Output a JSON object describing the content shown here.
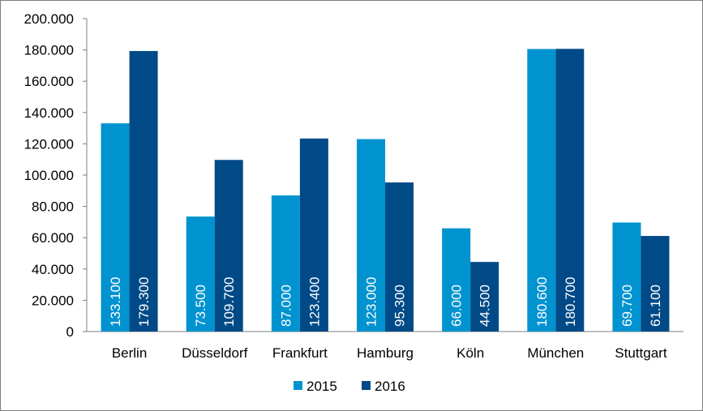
{
  "colors": {
    "series_2015": "#0093d0",
    "series_2016": "#004a87",
    "axis": "#7f7f7f",
    "background": "#ffffff",
    "label_text": "#ffffff"
  },
  "chart_data": {
    "type": "bar",
    "title": "",
    "xlabel": "",
    "ylabel": "",
    "ylim": [
      0,
      200000
    ],
    "ytick_step": 20000,
    "yticks": [
      "0",
      "20.000",
      "40.000",
      "60.000",
      "80.000",
      "100.000",
      "120.000",
      "140.000",
      "160.000",
      "180.000",
      "200.000"
    ],
    "categories": [
      "Berlin",
      "Düsseldorf",
      "Frankfurt",
      "Hamburg",
      "Köln",
      "München",
      "Stuttgart"
    ],
    "series": [
      {
        "name": "2015",
        "values": [
          133100,
          73500,
          87000,
          123000,
          66000,
          180600,
          69700
        ],
        "labels": [
          "133.100",
          "73.500",
          "87.000",
          "123.000",
          "66.000",
          "180.600",
          "69.700"
        ]
      },
      {
        "name": "2016",
        "values": [
          179300,
          109700,
          123400,
          95300,
          44500,
          180700,
          61100
        ],
        "labels": [
          "179.300",
          "109.700",
          "123.400",
          "95.300",
          "44.500",
          "180.700",
          "61.100"
        ]
      }
    ],
    "grid": false,
    "legend_position": "bottom"
  }
}
